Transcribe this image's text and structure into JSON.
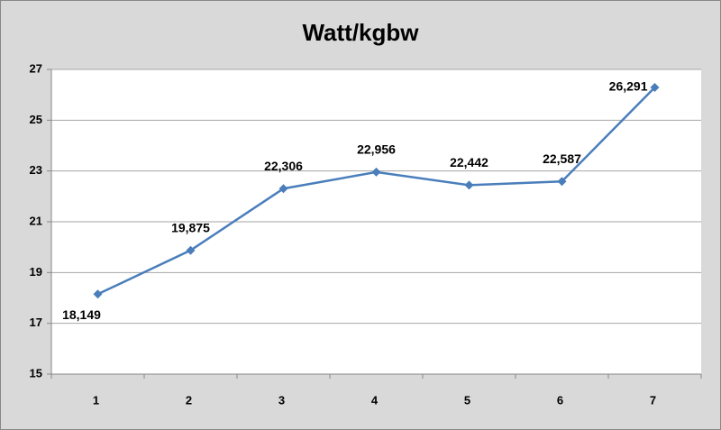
{
  "chart_data": {
    "type": "line",
    "title": "Watt/kgbw",
    "categories": [
      "1",
      "2",
      "3",
      "4",
      "5",
      "6",
      "7"
    ],
    "values": [
      18.149,
      19.875,
      22.306,
      22.956,
      22.442,
      22.587,
      26.291
    ],
    "value_labels": [
      "18,149",
      "19,875",
      "22,306",
      "22,956",
      "22,442",
      "22,587",
      "26,291"
    ],
    "color": "#4a7ebb",
    "ylim": [
      15,
      27
    ],
    "yticks": [
      15,
      17,
      19,
      21,
      23,
      25,
      27
    ],
    "grid": true
  }
}
